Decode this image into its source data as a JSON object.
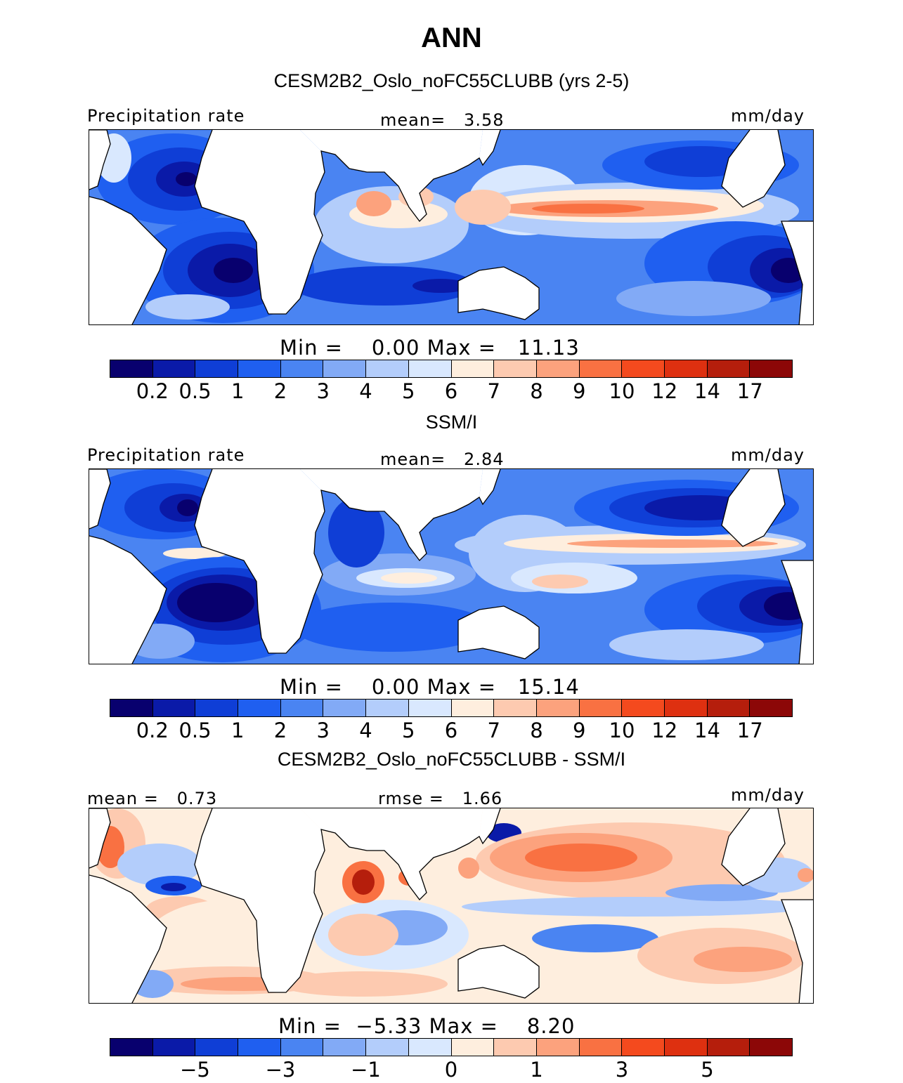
{
  "figure": {
    "title": "ANN"
  },
  "colors": {
    "levels": [
      "#08006e",
      "#0a1aa8",
      "#0f3ed6",
      "#1f5ff0",
      "#4a84f2",
      "#82aaf6",
      "#b3cdfb",
      "#d9e8fe",
      "#feeede",
      "#fdcab0",
      "#fca27d",
      "#f97142",
      "#f44a1e",
      "#de3010",
      "#b51e0c",
      "#8c0707"
    ],
    "land": "#ffffff",
    "coast": "#000000"
  },
  "panels": [
    {
      "subtitle": "CESM2B2_Oslo_noFC55CLUBB (yrs 2-5)",
      "left_label": "Precipitation rate",
      "center_label": "mean=   3.58",
      "right_label": "mm/day",
      "minmax": "Min =    0.00 Max =   11.13",
      "colorbar_ticks": [
        "0.2",
        "0.5",
        "1",
        "2",
        "3",
        "4",
        "5",
        "6",
        "7",
        "8",
        "9",
        "10",
        "12",
        "14",
        "17"
      ]
    },
    {
      "subtitle": "SSM/I",
      "left_label": "Precipitation rate",
      "center_label": "mean=   2.84",
      "right_label": "mm/day",
      "minmax": "Min =    0.00 Max =   15.14",
      "colorbar_ticks": [
        "0.2",
        "0.5",
        "1",
        "2",
        "3",
        "4",
        "5",
        "6",
        "7",
        "8",
        "9",
        "10",
        "12",
        "14",
        "17"
      ]
    },
    {
      "subtitle": "CESM2B2_Oslo_noFC55CLUBB - SSM/I",
      "left_label": "mean =   0.73",
      "center_label": "rmse =   1.66",
      "right_label": "mm/day",
      "minmax": "Min =  −5.33 Max =    8.20",
      "colorbar_ticks": [
        "−5",
        "−3",
        "−1",
        "0",
        "1",
        "3",
        "5"
      ]
    }
  ]
}
